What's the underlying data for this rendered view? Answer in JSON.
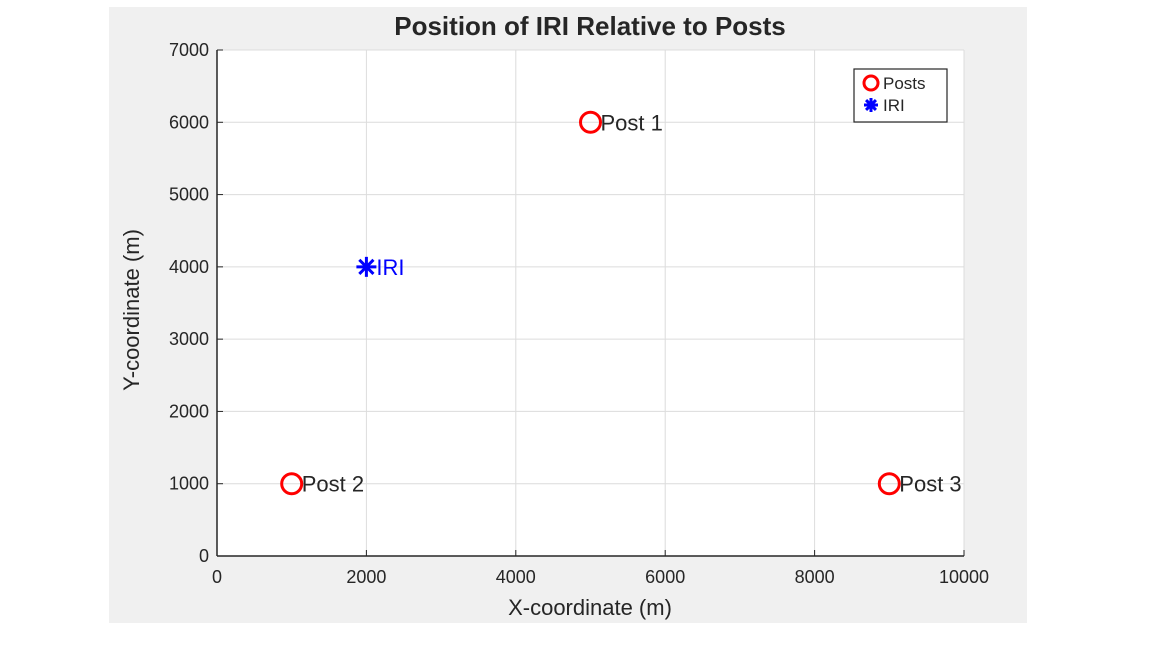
{
  "chart_data": {
    "type": "scatter",
    "title": "Position of IRI Relative to Posts",
    "xlabel": "X-coordinate (m)",
    "ylabel": "Y-coordinate (m)",
    "xlim": [
      0,
      10000
    ],
    "ylim": [
      0,
      7000
    ],
    "xticks": [
      "0",
      "2000",
      "4000",
      "6000",
      "8000",
      "10000"
    ],
    "yticks": [
      "0",
      "1000",
      "2000",
      "3000",
      "4000",
      "5000",
      "6000",
      "7000"
    ],
    "grid": true,
    "legend_position": "top-right",
    "series": [
      {
        "name": "Posts",
        "marker": "circle",
        "color": "#ff0000",
        "points": [
          {
            "x": 5000,
            "y": 6000,
            "label": "Post 1"
          },
          {
            "x": 1000,
            "y": 1000,
            "label": "Post 2"
          },
          {
            "x": 9000,
            "y": 1000,
            "label": "Post 3"
          }
        ]
      },
      {
        "name": "IRI",
        "marker": "asterisk",
        "color": "#0000ff",
        "points": [
          {
            "x": 2000,
            "y": 4000,
            "label": "IRI"
          }
        ]
      }
    ]
  }
}
